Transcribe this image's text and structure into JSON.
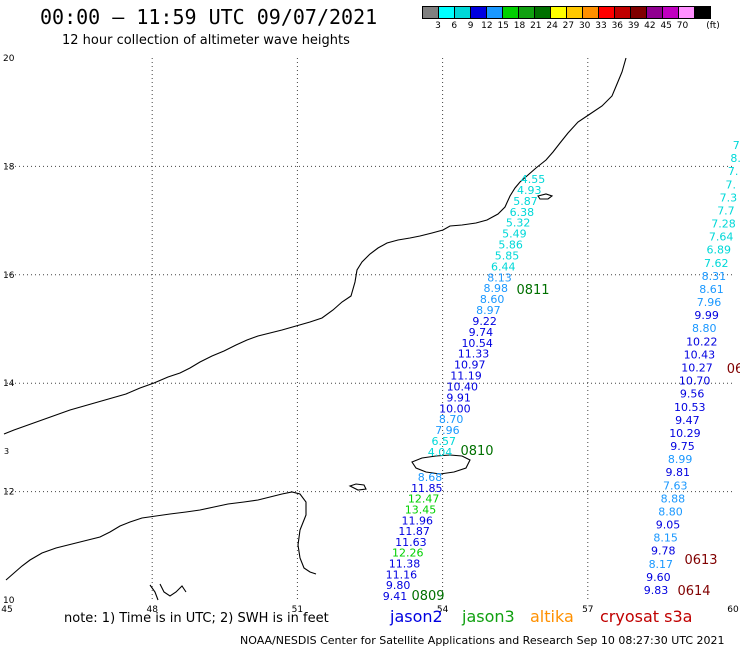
{
  "title": "00:00 – 11:59 UTC 09/07/2021",
  "subtitle": "12 hour collection of altimeter wave heights",
  "colorbar": {
    "unit": "(ft)",
    "colors": [
      "#808080",
      "#00ffff",
      "#00d8d8",
      "#0000e0",
      "#1a98ff",
      "#00d000",
      "#10a010",
      "#007000",
      "#ffff00",
      "#ffc800",
      "#ff9000",
      "#ff0000",
      "#c00000",
      "#800000",
      "#900090",
      "#c000c0",
      "#ff90ff",
      "#000000"
    ],
    "labels": [
      "3",
      "6",
      "9",
      "12",
      "15",
      "18",
      "21",
      "24",
      "27",
      "30",
      "33",
      "36",
      "39",
      "42",
      "45",
      "70"
    ]
  },
  "axes": {
    "lon_ticks": [
      "45",
      "48",
      "51",
      "54",
      "57",
      "60"
    ],
    "lat_ticks": [
      "20",
      "18",
      "16",
      "14",
      "12",
      "10"
    ]
  },
  "passes": [
    {
      "label": "0811",
      "color": "#007000"
    },
    {
      "label": "0810",
      "color": "#007000"
    },
    {
      "label": "0809",
      "color": "#007000"
    },
    {
      "label": "0613",
      "color": "#800000"
    },
    {
      "label": "0614",
      "color": "#800000"
    },
    {
      "label": "06",
      "color": "#800000"
    }
  ],
  "track_west": [
    {
      "v": "4.55",
      "c": "#00d8d8"
    },
    {
      "v": "4.93",
      "c": "#00d8d8"
    },
    {
      "v": "5.87",
      "c": "#00d8d8"
    },
    {
      "v": "6.38",
      "c": "#00d8d8"
    },
    {
      "v": "5.32",
      "c": "#00d8d8"
    },
    {
      "v": "5.49",
      "c": "#00d8d8"
    },
    {
      "v": "5.86",
      "c": "#00d8d8"
    },
    {
      "v": "5.85",
      "c": "#00d8d8"
    },
    {
      "v": "6.44",
      "c": "#00d8d8"
    },
    {
      "v": "8.13",
      "c": "#1a98ff"
    },
    {
      "v": "8.98",
      "c": "#1a98ff"
    },
    {
      "v": "8.60",
      "c": "#1a98ff"
    },
    {
      "v": "8.97",
      "c": "#1a98ff"
    },
    {
      "v": "9.22",
      "c": "#0000e0"
    },
    {
      "v": "9.74",
      "c": "#0000e0"
    },
    {
      "v": "10.54",
      "c": "#0000e0"
    },
    {
      "v": "11.33",
      "c": "#0000e0"
    },
    {
      "v": "10.97",
      "c": "#0000e0"
    },
    {
      "v": "11.19",
      "c": "#0000e0"
    },
    {
      "v": "10.40",
      "c": "#0000e0"
    },
    {
      "v": "9.91",
      "c": "#0000e0"
    },
    {
      "v": "10.00",
      "c": "#0000e0"
    },
    {
      "v": "8.70",
      "c": "#1a98ff"
    },
    {
      "v": "7.96",
      "c": "#1a98ff"
    },
    {
      "v": "6.57",
      "c": "#00d8d8"
    },
    {
      "v": "4.04",
      "c": "#00d8d8"
    }
  ],
  "track_west_south": [
    {
      "v": "8.68",
      "c": "#1a98ff"
    },
    {
      "v": "11.85",
      "c": "#0000e0"
    },
    {
      "v": "12.47",
      "c": "#00d000"
    },
    {
      "v": "13.45",
      "c": "#00d000"
    },
    {
      "v": "11.96",
      "c": "#0000e0"
    },
    {
      "v": "11.87",
      "c": "#0000e0"
    },
    {
      "v": "11.63",
      "c": "#0000e0"
    },
    {
      "v": "12.26",
      "c": "#00d000"
    },
    {
      "v": "11.38",
      "c": "#0000e0"
    },
    {
      "v": "11.16",
      "c": "#0000e0"
    },
    {
      "v": "9.80",
      "c": "#0000e0"
    },
    {
      "v": "9.41",
      "c": "#0000e0"
    }
  ],
  "track_east": [
    {
      "v": "7.",
      "c": "#00d8d8"
    },
    {
      "v": "8.",
      "c": "#00d8d8"
    },
    {
      "v": "7.",
      "c": "#00d8d8"
    },
    {
      "v": "7.",
      "c": "#00d8d8"
    },
    {
      "v": "7.3",
      "c": "#00d8d8"
    },
    {
      "v": "7.7",
      "c": "#00d8d8"
    },
    {
      "v": "7.28",
      "c": "#00d8d8"
    },
    {
      "v": "7.64",
      "c": "#00d8d8"
    },
    {
      "v": "6.89",
      "c": "#00d8d8"
    },
    {
      "v": "7.62",
      "c": "#00d8d8"
    },
    {
      "v": "8.31",
      "c": "#1a98ff"
    },
    {
      "v": "8.61",
      "c": "#1a98ff"
    },
    {
      "v": "7.96",
      "c": "#1a98ff"
    },
    {
      "v": "9.99",
      "c": "#0000e0"
    },
    {
      "v": "8.80",
      "c": "#1a98ff"
    },
    {
      "v": "10.22",
      "c": "#0000e0"
    },
    {
      "v": "10.43",
      "c": "#0000e0"
    },
    {
      "v": "10.27",
      "c": "#0000e0"
    },
    {
      "v": "10.70",
      "c": "#0000e0"
    },
    {
      "v": "9.56",
      "c": "#0000e0"
    },
    {
      "v": "10.53",
      "c": "#0000e0"
    },
    {
      "v": "9.47",
      "c": "#0000e0"
    },
    {
      "v": "10.29",
      "c": "#0000e0"
    },
    {
      "v": "9.75",
      "c": "#0000e0"
    },
    {
      "v": "8.99",
      "c": "#1a98ff"
    },
    {
      "v": "9.81",
      "c": "#0000e0"
    },
    {
      "v": "7.63",
      "c": "#1a98ff"
    },
    {
      "v": "8.88",
      "c": "#1a98ff"
    },
    {
      "v": "8.80",
      "c": "#1a98ff"
    },
    {
      "v": "9.05",
      "c": "#0000e0"
    },
    {
      "v": "8.15",
      "c": "#1a98ff"
    },
    {
      "v": "9.78",
      "c": "#0000e0"
    },
    {
      "v": "8.17",
      "c": "#1a98ff"
    },
    {
      "v": "9.60",
      "c": "#0000e0"
    },
    {
      "v": "9.83",
      "c": "#0000e0"
    }
  ],
  "note": "note: 1) Time is in UTC; 2) SWH is in feet",
  "satellites": [
    {
      "name": "jason2",
      "color": "#0000e0"
    },
    {
      "name": "jason3",
      "color": "#10a010"
    },
    {
      "name": "altika",
      "color": "#ff9000"
    },
    {
      "name": "cryosat s3a",
      "color": "#c00000"
    }
  ],
  "credit": "NOAA/NESDIS Center for Satellite Applications and Research   Sep 10 08:27:30 UTC 2021"
}
